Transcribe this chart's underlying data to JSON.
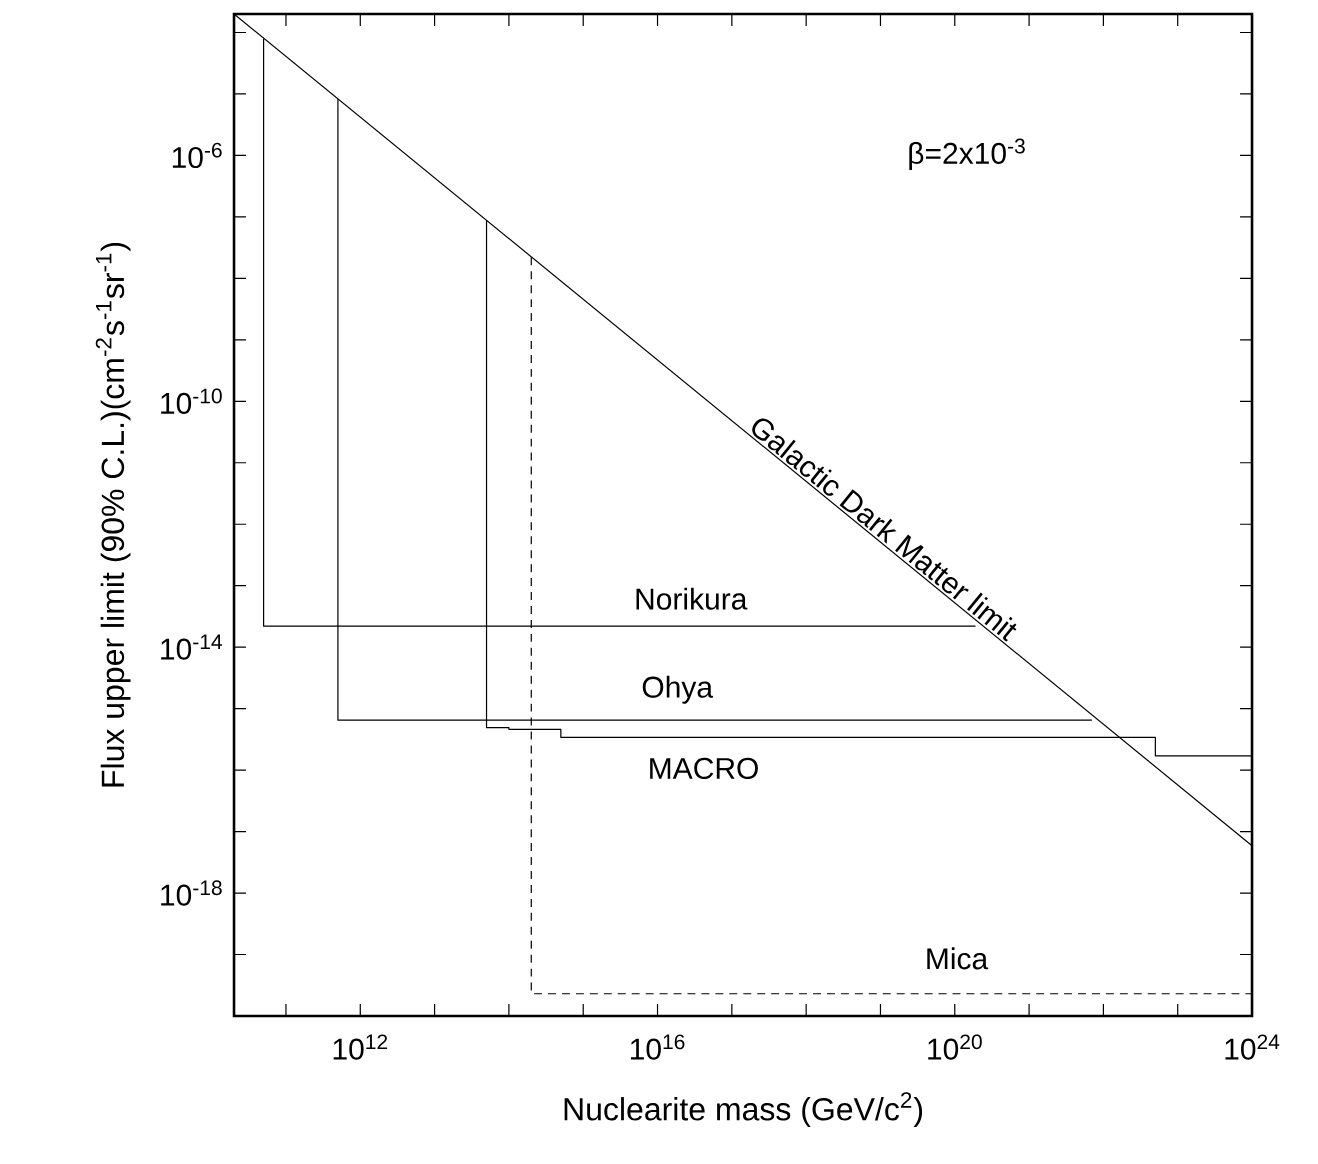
{
  "chart_data": {
    "type": "line",
    "log": "xy",
    "xlabel": "Nuclearite mass (GeV/c$^{2}$)",
    "ylabel": "Flux upper limit (90% C.L.)(cm$^{-2}$s$^{-1}$sr$^{-1}$)",
    "xlim": [
      20000000000.0,
      1e+24
    ],
    "ylim": [
      1e-20,
      0.0002
    ],
    "xticks": [
      {
        "value": 100000000000.0,
        "label": null
      },
      {
        "value": 1000000000000.0,
        "label": "10$^{12}$"
      },
      {
        "value": 10000000000000.0,
        "label": null
      },
      {
        "value": 100000000000000.0,
        "label": null
      },
      {
        "value": 1000000000000000.0,
        "label": null
      },
      {
        "value": 1e+16,
        "label": "10$^{16}$"
      },
      {
        "value": 1e+17,
        "label": null
      },
      {
        "value": 1e+18,
        "label": null
      },
      {
        "value": 1e+19,
        "label": null
      },
      {
        "value": 1e+20,
        "label": "10$^{20}$"
      },
      {
        "value": 1e+21,
        "label": null
      },
      {
        "value": 1e+22,
        "label": null
      },
      {
        "value": 1e+23,
        "label": null
      },
      {
        "value": 1e+24,
        "label": "10$^{24}$"
      }
    ],
    "yticks": [
      {
        "value": 1e-19,
        "label": null
      },
      {
        "value": 1e-18,
        "label": "10$^{-18}$"
      },
      {
        "value": 1e-17,
        "label": null
      },
      {
        "value": 1e-16,
        "label": null
      },
      {
        "value": 1e-15,
        "label": null
      },
      {
        "value": 1e-14,
        "label": "10$^{-14}$"
      },
      {
        "value": 1e-13,
        "label": null
      },
      {
        "value": 1e-12,
        "label": null
      },
      {
        "value": 1e-11,
        "label": null
      },
      {
        "value": 1e-10,
        "label": "10$^{-10}$"
      },
      {
        "value": 1e-09,
        "label": null
      },
      {
        "value": 1e-08,
        "label": null
      },
      {
        "value": 1e-07,
        "label": null
      },
      {
        "value": 1e-06,
        "label": "10$^{-6}$"
      },
      {
        "value": 1e-05,
        "label": null
      },
      {
        "value": 0.0001,
        "label": null
      }
    ],
    "series": [
      {
        "name": "Galactic Dark Matter limit",
        "color": "#000000",
        "line_style": "solid",
        "x": [
          20000000000.0,
          1e+24
        ],
        "values": [
          0.0002,
          5.9e-18
        ]
      },
      {
        "name": "Norikura",
        "color": "#000000",
        "line_style": "solid",
        "x": [
          50000000000.0,
          50000000000.0,
          1.9e+20
        ],
        "values": [
          8e-05,
          2.2e-14,
          2.2e-14
        ]
      },
      {
        "name": "Ohya",
        "color": "#000000",
        "line_style": "solid",
        "x": [
          500000000000.0,
          500000000000.0,
          7e+21
        ],
        "values": [
          8.3e-06,
          6.5e-16,
          6.5e-16
        ]
      },
      {
        "name": "MACRO",
        "color": "#000000",
        "line_style": "solid",
        "x": [
          50000000000000.0,
          50000000000000.0,
          100000000000000.0,
          100000000000000.0,
          500000000000000.0,
          500000000000000.0,
          5e+22,
          5e+22,
          1e+24
        ],
        "values": [
          8.7e-08,
          4.9e-16,
          4.9e-16,
          4.6e-16,
          4.6e-16,
          3.4e-16,
          3.4e-16,
          1.7e-16,
          1.7e-16
        ]
      },
      {
        "name": "Mica",
        "color": "#000000",
        "line_style": "dashed",
        "x": [
          200000000000000.0,
          200000000000000.0,
          1e+24
        ],
        "values": [
          2.2e-08,
          2.3e-20,
          2.3e-20
        ]
      }
    ],
    "annotations": [
      "β=2x10$^{-3}$"
    ]
  }
}
